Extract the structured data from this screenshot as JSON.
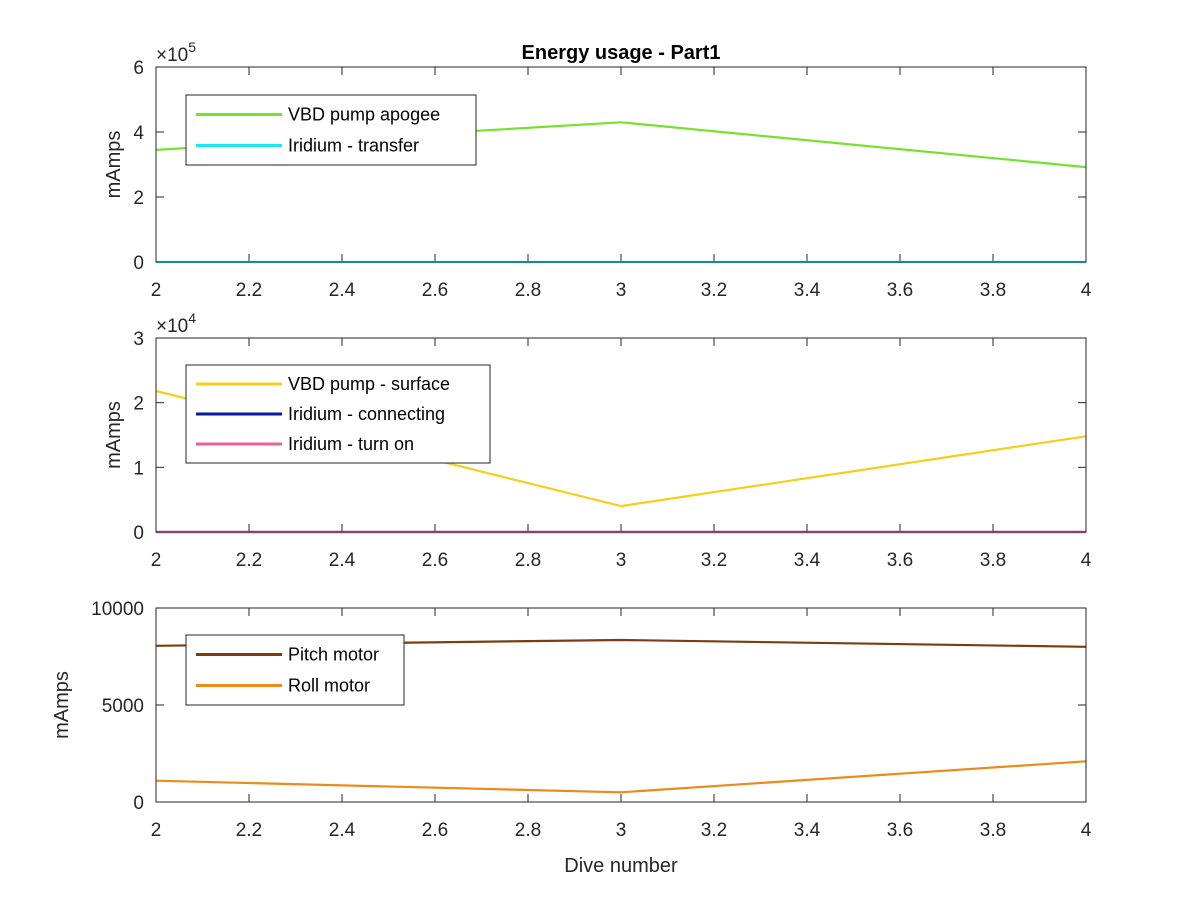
{
  "chart_data": [
    {
      "type": "line",
      "title": "Energy usage - Part1",
      "xlabel": "",
      "ylabel": "mAmps",
      "xlim": [
        2,
        4
      ],
      "ylim": [
        0,
        600000
      ],
      "xticks": [
        "2",
        "2.2",
        "2.4",
        "2.6",
        "2.8",
        "3",
        "3.2",
        "3.4",
        "3.6",
        "3.8",
        "4"
      ],
      "yticks": [
        "0",
        "2",
        "4",
        "6"
      ],
      "exponent_base": "×10",
      "exponent_power": "5",
      "legend_position": "top-left",
      "x": [
        2,
        3,
        4
      ],
      "series": [
        {
          "name": "VBD pump apogee",
          "color": "#77e22b",
          "values": [
            345000,
            430000,
            292000
          ]
        },
        {
          "name": "Iridium - transfer",
          "color": "#1ee6f0",
          "values": [
            0,
            0,
            0
          ]
        }
      ]
    },
    {
      "type": "line",
      "title": "",
      "xlabel": "",
      "ylabel": "mAmps",
      "xlim": [
        2,
        4
      ],
      "ylim": [
        0,
        30000
      ],
      "xticks": [
        "2",
        "2.2",
        "2.4",
        "2.6",
        "2.8",
        "3",
        "3.2",
        "3.4",
        "3.6",
        "3.8",
        "4"
      ],
      "yticks": [
        "0",
        "1",
        "2",
        "3"
      ],
      "exponent_base": "×10",
      "exponent_power": "4",
      "legend_position": "top-left",
      "x": [
        2,
        3,
        4
      ],
      "series": [
        {
          "name": "VBD pump - surface",
          "color": "#f5cf1a",
          "values": [
            21800,
            4000,
            14800
          ]
        },
        {
          "name": "Iridium - connecting",
          "color": "#0a1aa0",
          "values": [
            0,
            0,
            0
          ]
        },
        {
          "name": "Iridium - turn on",
          "color": "#e8609e",
          "values": [
            0,
            0,
            0
          ]
        }
      ]
    },
    {
      "type": "line",
      "title": "",
      "xlabel": "Dive number",
      "ylabel": "mAmps",
      "xlim": [
        2,
        4
      ],
      "ylim": [
        0,
        10000
      ],
      "xticks": [
        "2",
        "2.2",
        "2.4",
        "2.6",
        "2.8",
        "3",
        "3.2",
        "3.4",
        "3.6",
        "3.8",
        "4"
      ],
      "yticks": [
        "0",
        "5000",
        "10000"
      ],
      "exponent_base": "",
      "exponent_power": "",
      "legend_position": "top-left",
      "x": [
        2,
        3,
        4
      ],
      "series": [
        {
          "name": "Pitch motor",
          "color": "#7a3d10",
          "values": [
            8050,
            8350,
            8000
          ]
        },
        {
          "name": "Roll motor",
          "color": "#ed8a1a",
          "values": [
            1100,
            500,
            2100
          ]
        }
      ]
    }
  ]
}
